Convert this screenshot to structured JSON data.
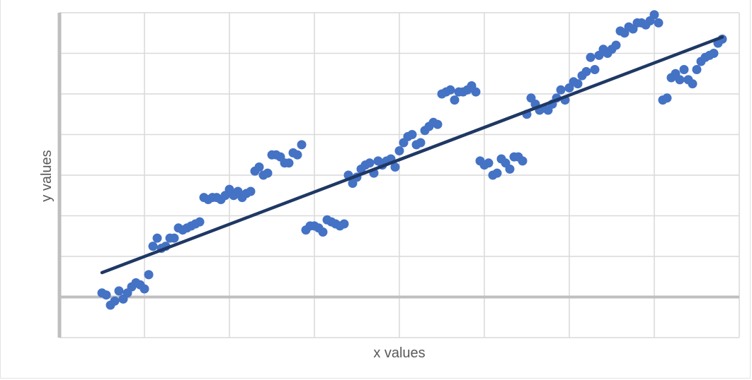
{
  "chart_data": {
    "type": "scatter",
    "title": "",
    "xlabel": "x values",
    "ylabel": "y values",
    "xlim": [
      -1,
      15
    ],
    "ylim": [
      -1,
      7
    ],
    "grid": true,
    "legend": "none",
    "colors": {
      "points": "#4472c4",
      "trendline": "#1f3864",
      "gridline": "#d9d9d9",
      "axis": "#bfbfbf"
    },
    "trendline": {
      "x": [
        0.0,
        14.6
      ],
      "y": [
        0.6,
        6.4
      ]
    },
    "series": [
      {
        "x": [
          0.0,
          0.1,
          0.2,
          0.3,
          0.4,
          0.5,
          0.6,
          0.7,
          0.8,
          0.9,
          1.0,
          1.1,
          1.2,
          1.3,
          1.4,
          1.5,
          1.6,
          1.7,
          1.8,
          1.9,
          2.0,
          2.1,
          2.2,
          2.3,
          2.4,
          2.5,
          2.6,
          2.7,
          2.8,
          2.9,
          3.0,
          3.1,
          3.2,
          3.3,
          3.4,
          3.5,
          3.6,
          3.7,
          3.8,
          3.9,
          4.0,
          4.1,
          4.2,
          4.3,
          4.4,
          4.5,
          4.6,
          4.7,
          4.8,
          4.9,
          5.0,
          5.1,
          5.2,
          5.3,
          5.4,
          5.5,
          5.6,
          5.7,
          5.8,
          5.9,
          6.0,
          6.1,
          6.2,
          6.3,
          6.4,
          6.5,
          6.6,
          6.7,
          6.8,
          6.9,
          7.0,
          7.1,
          7.2,
          7.3,
          7.4,
          7.5,
          7.6,
          7.7,
          7.8,
          7.9,
          8.0,
          8.1,
          8.2,
          8.3,
          8.4,
          8.5,
          8.6,
          8.7,
          8.8,
          8.9,
          9.0,
          9.1,
          9.2,
          9.3,
          9.4,
          9.5,
          9.6,
          9.7,
          9.8,
          9.9,
          10.0,
          10.1,
          10.2,
          10.3,
          10.4,
          10.5,
          10.6,
          10.7,
          10.8,
          10.9,
          11.0,
          11.1,
          11.2,
          11.3,
          11.4,
          11.5,
          11.6,
          11.7,
          11.8,
          11.9,
          12.0,
          12.1,
          12.2,
          12.3,
          12.4,
          12.5,
          12.6,
          12.7,
          12.8,
          12.9,
          13.0,
          13.1,
          13.2,
          13.3,
          13.4,
          13.5,
          13.6,
          13.7,
          13.8,
          13.9,
          14.0,
          14.1,
          14.2,
          14.3,
          14.4,
          14.5,
          14.6
        ],
        "y": [
          0.1,
          0.05,
          -0.2,
          -0.1,
          0.15,
          -0.05,
          0.1,
          0.25,
          0.35,
          0.3,
          0.2,
          0.55,
          1.25,
          1.45,
          1.2,
          1.25,
          1.45,
          1.45,
          1.7,
          1.65,
          1.7,
          1.75,
          1.8,
          1.85,
          2.45,
          2.4,
          2.45,
          2.45,
          2.4,
          2.5,
          2.65,
          2.5,
          2.6,
          2.45,
          2.55,
          2.6,
          3.1,
          3.2,
          3.0,
          3.05,
          3.5,
          3.5,
          3.45,
          3.3,
          3.3,
          3.55,
          3.5,
          3.75,
          1.65,
          1.75,
          1.75,
          1.7,
          1.6,
          1.9,
          1.85,
          1.8,
          1.75,
          1.8,
          3.0,
          2.8,
          2.95,
          3.15,
          3.25,
          3.3,
          3.05,
          3.35,
          3.25,
          3.35,
          3.4,
          3.2,
          3.6,
          3.8,
          3.95,
          4.0,
          3.75,
          3.8,
          4.1,
          4.2,
          4.3,
          4.25,
          5.0,
          5.05,
          5.1,
          4.85,
          5.05,
          5.05,
          5.1,
          5.2,
          5.05,
          3.35,
          3.25,
          3.3,
          3.0,
          3.05,
          3.4,
          3.3,
          3.15,
          3.45,
          3.45,
          3.35,
          4.5,
          4.9,
          4.75,
          4.6,
          4.65,
          4.6,
          4.75,
          4.9,
          5.1,
          4.85,
          5.15,
          5.3,
          5.25,
          5.45,
          5.55,
          5.9,
          5.6,
          5.95,
          6.1,
          6.0,
          6.1,
          6.2,
          6.55,
          6.5,
          6.65,
          6.6,
          6.75,
          6.75,
          6.7,
          6.8,
          6.95,
          6.75,
          4.85,
          4.9,
          5.4,
          5.5,
          5.35,
          5.6,
          5.35,
          5.25,
          5.6,
          5.8,
          5.9,
          5.95,
          6.0,
          6.25,
          6.35
        ]
      }
    ]
  }
}
